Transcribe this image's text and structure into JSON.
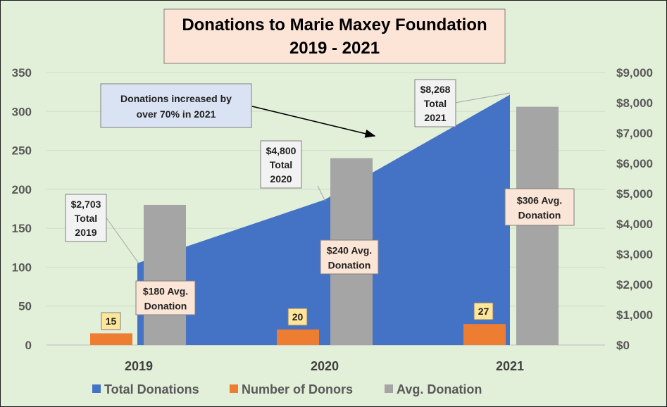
{
  "chart_data": {
    "type": "bar",
    "title": [
      "Donations to Marie Maxey Foundation",
      "2019 - 2021"
    ],
    "categories": [
      "2019",
      "2020",
      "2021"
    ],
    "y_left": {
      "min": 0,
      "max": 350,
      "step": 50,
      "ticks": [
        "0",
        "50",
        "100",
        "150",
        "200",
        "250",
        "300",
        "350"
      ]
    },
    "y_right": {
      "min": 0,
      "max": 9000,
      "step": 1000,
      "ticks": [
        "$0",
        "$1,000",
        "$2,000",
        "$3,000",
        "$4,000",
        "$5,000",
        "$6,000",
        "$7,000",
        "$8,000",
        "$9,000"
      ]
    },
    "grid": true,
    "legend_position": "bottom",
    "series": [
      {
        "name": "Total Donations",
        "type": "area",
        "axis": "right",
        "color": "#4472c4",
        "values": [
          2703,
          4800,
          8268
        ]
      },
      {
        "name": "Number of Donors",
        "type": "bar",
        "axis": "left",
        "color": "#ed7d31",
        "values": [
          15,
          20,
          27
        ]
      },
      {
        "name": "Avg. Donation",
        "type": "bar",
        "axis": "left",
        "color": "#a5a5a5",
        "values": [
          180,
          240,
          306
        ]
      }
    ],
    "data_labels": {
      "donors": [
        "15",
        "20",
        "27"
      ],
      "totals": [
        [
          "$2,703",
          "Total",
          "2019"
        ],
        [
          "$4,800",
          "Total",
          "2020"
        ],
        [
          "$8,268",
          "Total",
          "2021"
        ]
      ],
      "avg": [
        [
          "$180 Avg.",
          "Donation"
        ],
        [
          "$240 Avg.",
          "Donation"
        ],
        [
          "$306 Avg.",
          "Donation"
        ]
      ]
    },
    "annotation": [
      "Donations increased by",
      "over 70% in 2021"
    ]
  }
}
